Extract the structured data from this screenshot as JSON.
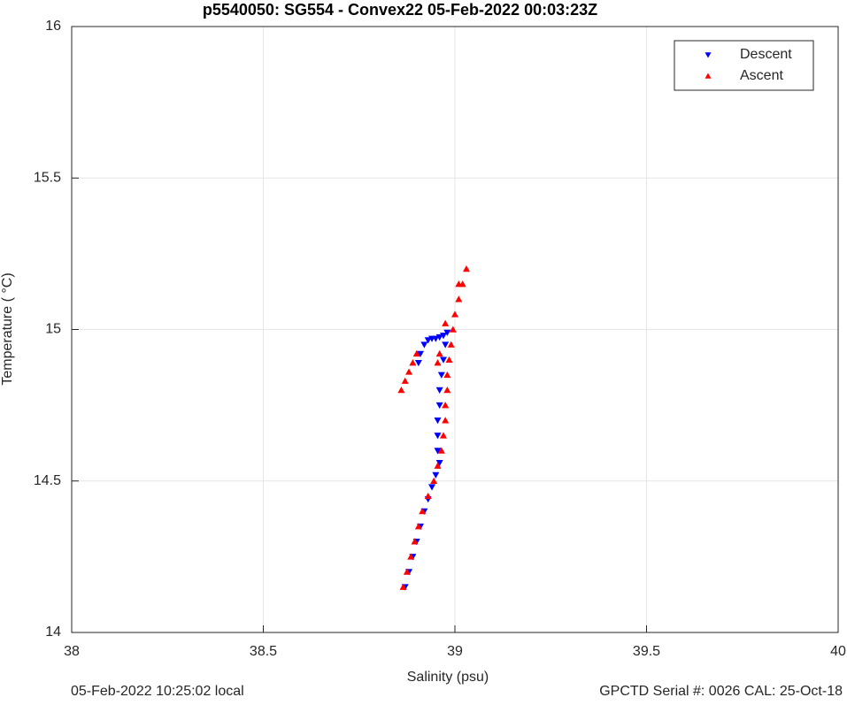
{
  "chart_data": {
    "type": "scatter",
    "title": "p5540050: SG554 - Convex22 05-Feb-2022 00:03:23Z",
    "xlabel": "Salinity (psu)",
    "ylabel": "Temperature (   °C)",
    "footer_left": "05-Feb-2022 10:25:02 local",
    "footer_right": "GPCTD Serial #: 0026 CAL: 25-Oct-18",
    "xlim": [
      38,
      40
    ],
    "xticks": [
      38,
      38.5,
      39,
      39.5,
      40
    ],
    "ylim": [
      14,
      16
    ],
    "yticks": [
      14,
      14.5,
      15,
      15.5,
      16
    ],
    "grid": true,
    "legend": "northeast",
    "series": [
      {
        "name": "Descent",
        "color": "#0000ff",
        "marker": "triangle-down",
        "x": [
          38.905,
          38.91,
          38.92,
          38.93,
          38.94,
          38.95,
          38.96,
          38.97,
          38.98,
          38.975,
          38.97,
          38.965,
          38.96,
          38.96,
          38.955,
          38.955,
          38.955,
          38.96,
          38.95,
          38.94,
          38.93,
          38.92,
          38.91,
          38.9,
          38.89,
          38.88,
          38.87
        ],
        "values": [
          14.89,
          14.92,
          14.95,
          14.965,
          14.97,
          14.97,
          14.975,
          14.98,
          14.99,
          14.95,
          14.9,
          14.85,
          14.8,
          14.75,
          14.7,
          14.65,
          14.6,
          14.56,
          14.52,
          14.48,
          14.44,
          14.4,
          14.35,
          14.3,
          14.25,
          14.2,
          14.15
        ]
      },
      {
        "name": "Ascent",
        "color": "#ff0000",
        "marker": "triangle-up",
        "x": [
          38.865,
          38.875,
          38.885,
          38.895,
          38.905,
          38.915,
          38.93,
          38.945,
          38.955,
          38.965,
          38.97,
          38.975,
          38.975,
          38.98,
          38.98,
          38.985,
          38.99,
          38.995,
          39.0,
          39.01,
          39.02,
          39.03,
          38.86,
          38.87,
          38.88,
          38.89,
          38.9,
          38.96,
          38.955,
          38.975,
          39.01
        ],
        "values": [
          14.15,
          14.2,
          14.25,
          14.3,
          14.35,
          14.4,
          14.45,
          14.5,
          14.55,
          14.6,
          14.65,
          14.7,
          14.75,
          14.8,
          14.85,
          14.9,
          14.95,
          15.0,
          15.05,
          15.1,
          15.15,
          15.2,
          14.8,
          14.83,
          14.86,
          14.89,
          14.92,
          14.92,
          14.89,
          15.02,
          15.15
        ]
      }
    ]
  }
}
